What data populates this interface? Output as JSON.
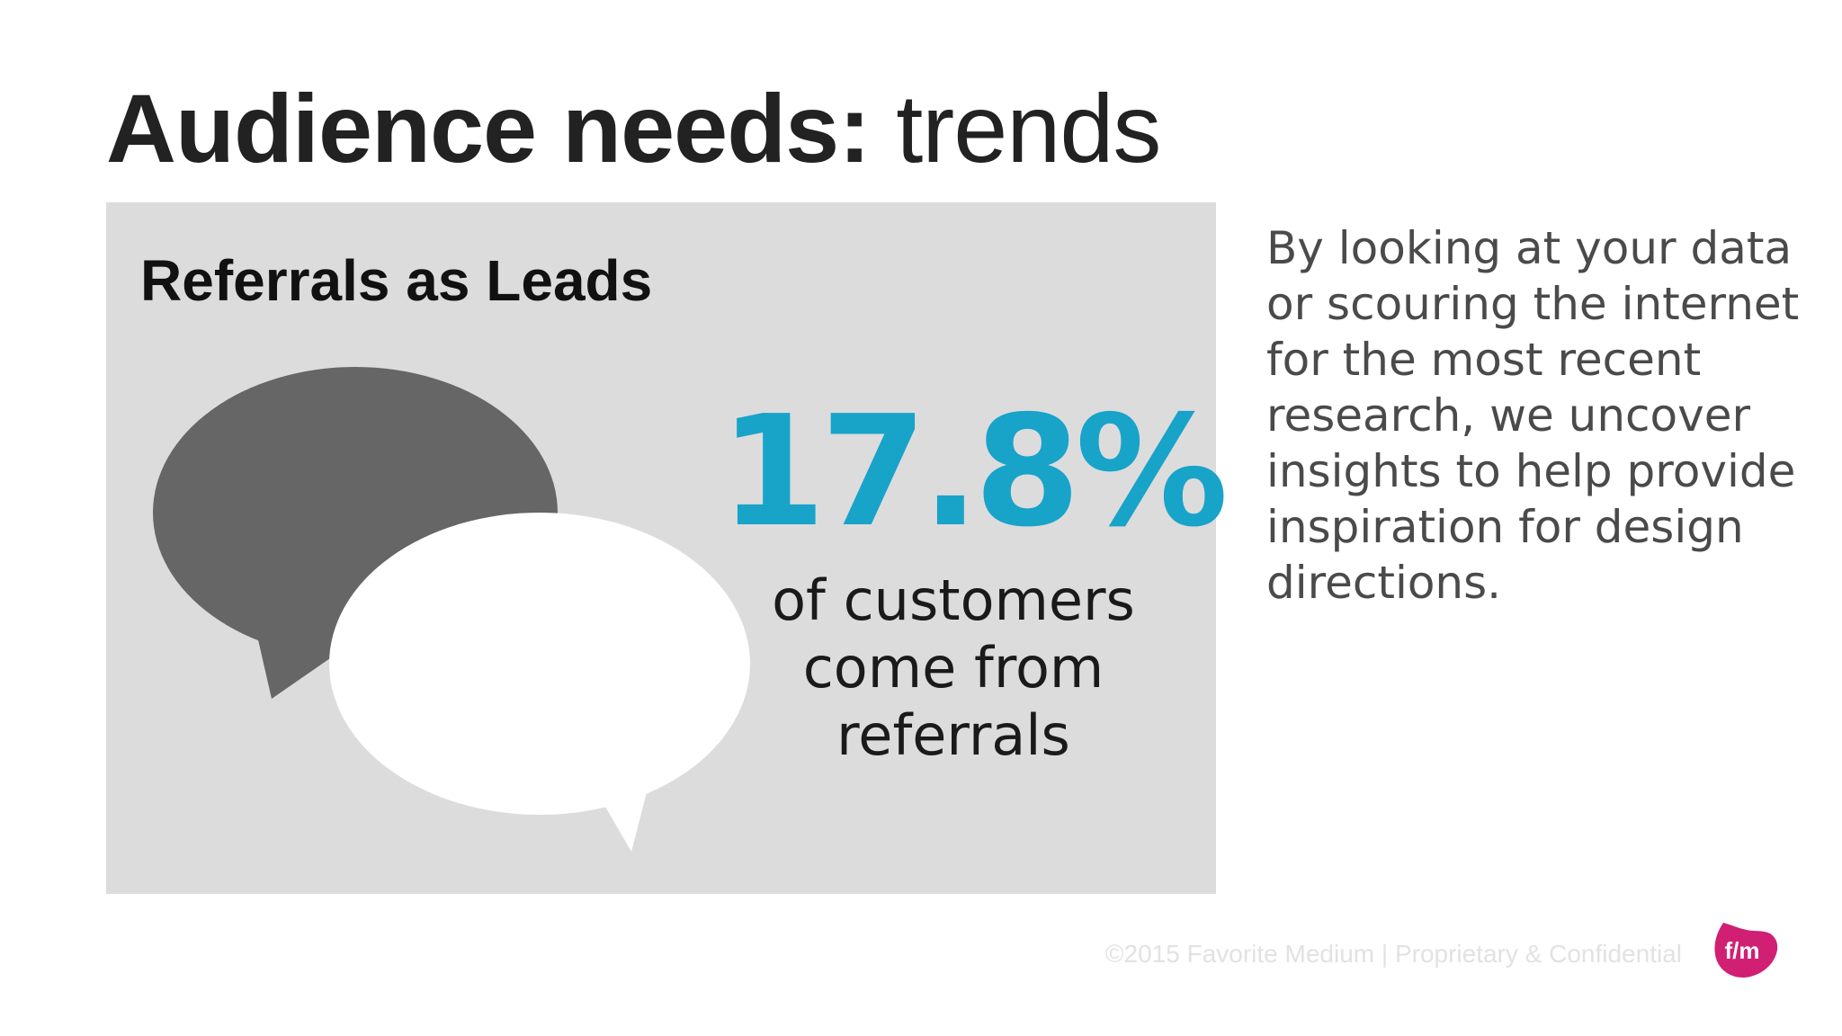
{
  "slide": {
    "title_bold": "Audience needs:",
    "title_light": "trends"
  },
  "panel": {
    "title": "Referrals as Leads",
    "stat_value": "17.8%",
    "stat_caption_lines": [
      "of customers",
      "come from",
      "referrals"
    ],
    "accent_color": "#18a3c9",
    "background_color": "#dcdcdd",
    "icon": "speech-bubbles-icon"
  },
  "side_text_lines": [
    "By looking at your data",
    "or scouring the internet",
    "for the most recent",
    "research, we uncover",
    "insights to help provide",
    "inspiration for design",
    "directions."
  ],
  "footer": {
    "copyright": "©2015 Favorite Medium | Proprietary & Confidential"
  },
  "logo": {
    "text": "f/m",
    "color": "#d11f74",
    "icon": "favorite-medium-logo-icon"
  }
}
